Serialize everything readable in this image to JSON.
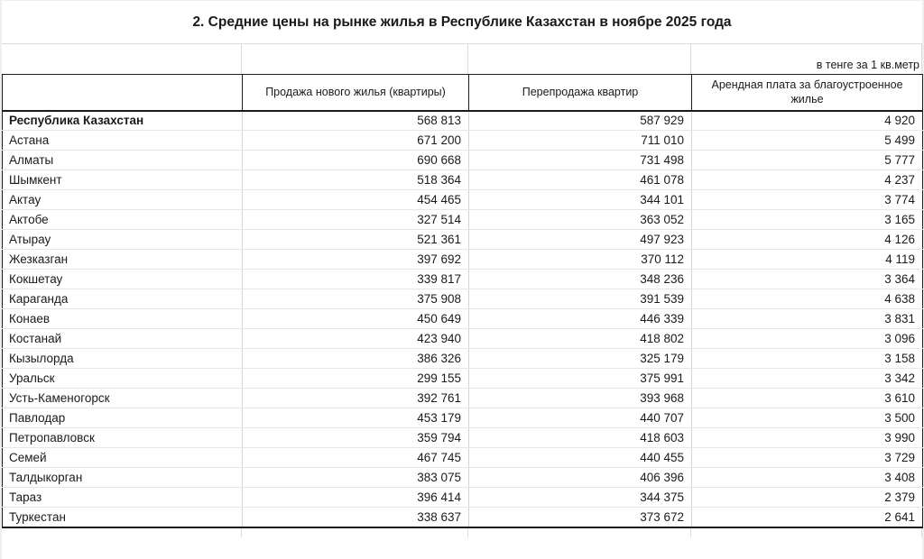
{
  "page": {
    "title": "2. Средние цены на рынке жилья в Республике Казахстан в ноябре 2025 года",
    "units_note": "в тенге за 1 кв.метр"
  },
  "table": {
    "columns": {
      "region": "",
      "new_sale": "Продажа нового жилья (квартиры)",
      "resale": "Перепродажа квартир",
      "rent": "Арендная плата за благоустроенное жилье"
    },
    "rows": [
      {
        "region": "Республика Казахстан",
        "bold": true,
        "new_sale": "568 813",
        "resale": "587 929",
        "rent": "4 920"
      },
      {
        "region": "Астана",
        "bold": false,
        "new_sale": "671 200",
        "resale": "711 010",
        "rent": "5 499"
      },
      {
        "region": "Алматы",
        "bold": false,
        "new_sale": "690 668",
        "resale": "731 498",
        "rent": "5 777"
      },
      {
        "region": "Шымкент",
        "bold": false,
        "new_sale": "518 364",
        "resale": "461 078",
        "rent": "4 237"
      },
      {
        "region": "Актау",
        "bold": false,
        "new_sale": "454 465",
        "resale": "344 101",
        "rent": "3 774"
      },
      {
        "region": "Актобе",
        "bold": false,
        "new_sale": "327 514",
        "resale": "363 052",
        "rent": "3 165"
      },
      {
        "region": "Атырау",
        "bold": false,
        "new_sale": "521 361",
        "resale": "497 923",
        "rent": "4 126"
      },
      {
        "region": "Жезказган",
        "bold": false,
        "new_sale": "397 692",
        "resale": "370 112",
        "rent": "4 119"
      },
      {
        "region": "Кокшетау",
        "bold": false,
        "new_sale": "339 817",
        "resale": "348 236",
        "rent": "3 364"
      },
      {
        "region": "Караганда",
        "bold": false,
        "new_sale": "375 908",
        "resale": "391 539",
        "rent": "4 638"
      },
      {
        "region": "Конаев",
        "bold": false,
        "new_sale": "450 649",
        "resale": "446 339",
        "rent": "3 831"
      },
      {
        "region": "Костанай",
        "bold": false,
        "new_sale": "423 940",
        "resale": "418 802",
        "rent": "3 096"
      },
      {
        "region": "Кызылорда",
        "bold": false,
        "new_sale": "386 326",
        "resale": "325 179",
        "rent": "3 158"
      },
      {
        "region": "Уральск",
        "bold": false,
        "new_sale": "299 155",
        "resale": "375 991",
        "rent": "3 342"
      },
      {
        "region": "Усть-Каменогорск",
        "bold": false,
        "new_sale": "392 761",
        "resale": "393 968",
        "rent": "3 610"
      },
      {
        "region": "Павлодар",
        "bold": false,
        "new_sale": "453 179",
        "resale": "440 707",
        "rent": "3 500"
      },
      {
        "region": "Петропавловск",
        "bold": false,
        "new_sale": "359 794",
        "resale": "418 603",
        "rent": "3 990"
      },
      {
        "region": "Семей",
        "bold": false,
        "new_sale": "467 745",
        "resale": "440 455",
        "rent": "3 729"
      },
      {
        "region": "Талдыкорган",
        "bold": false,
        "new_sale": "383 075",
        "resale": "406 396",
        "rent": "3 408"
      },
      {
        "region": "Тараз",
        "bold": false,
        "new_sale": "396 414",
        "resale": "344 375",
        "rent": "2 379"
      },
      {
        "region": "Туркестан",
        "bold": false,
        "new_sale": "338 637",
        "resale": "373 672",
        "rent": "2 641"
      }
    ]
  },
  "colors": {
    "text": "#1a1a1a",
    "dark_border": "#1a1a1a",
    "light_grid_vertical": "#d5d5d5",
    "light_grid_horizontal": "#e7e7e7",
    "edge_margin": "#efefef"
  }
}
